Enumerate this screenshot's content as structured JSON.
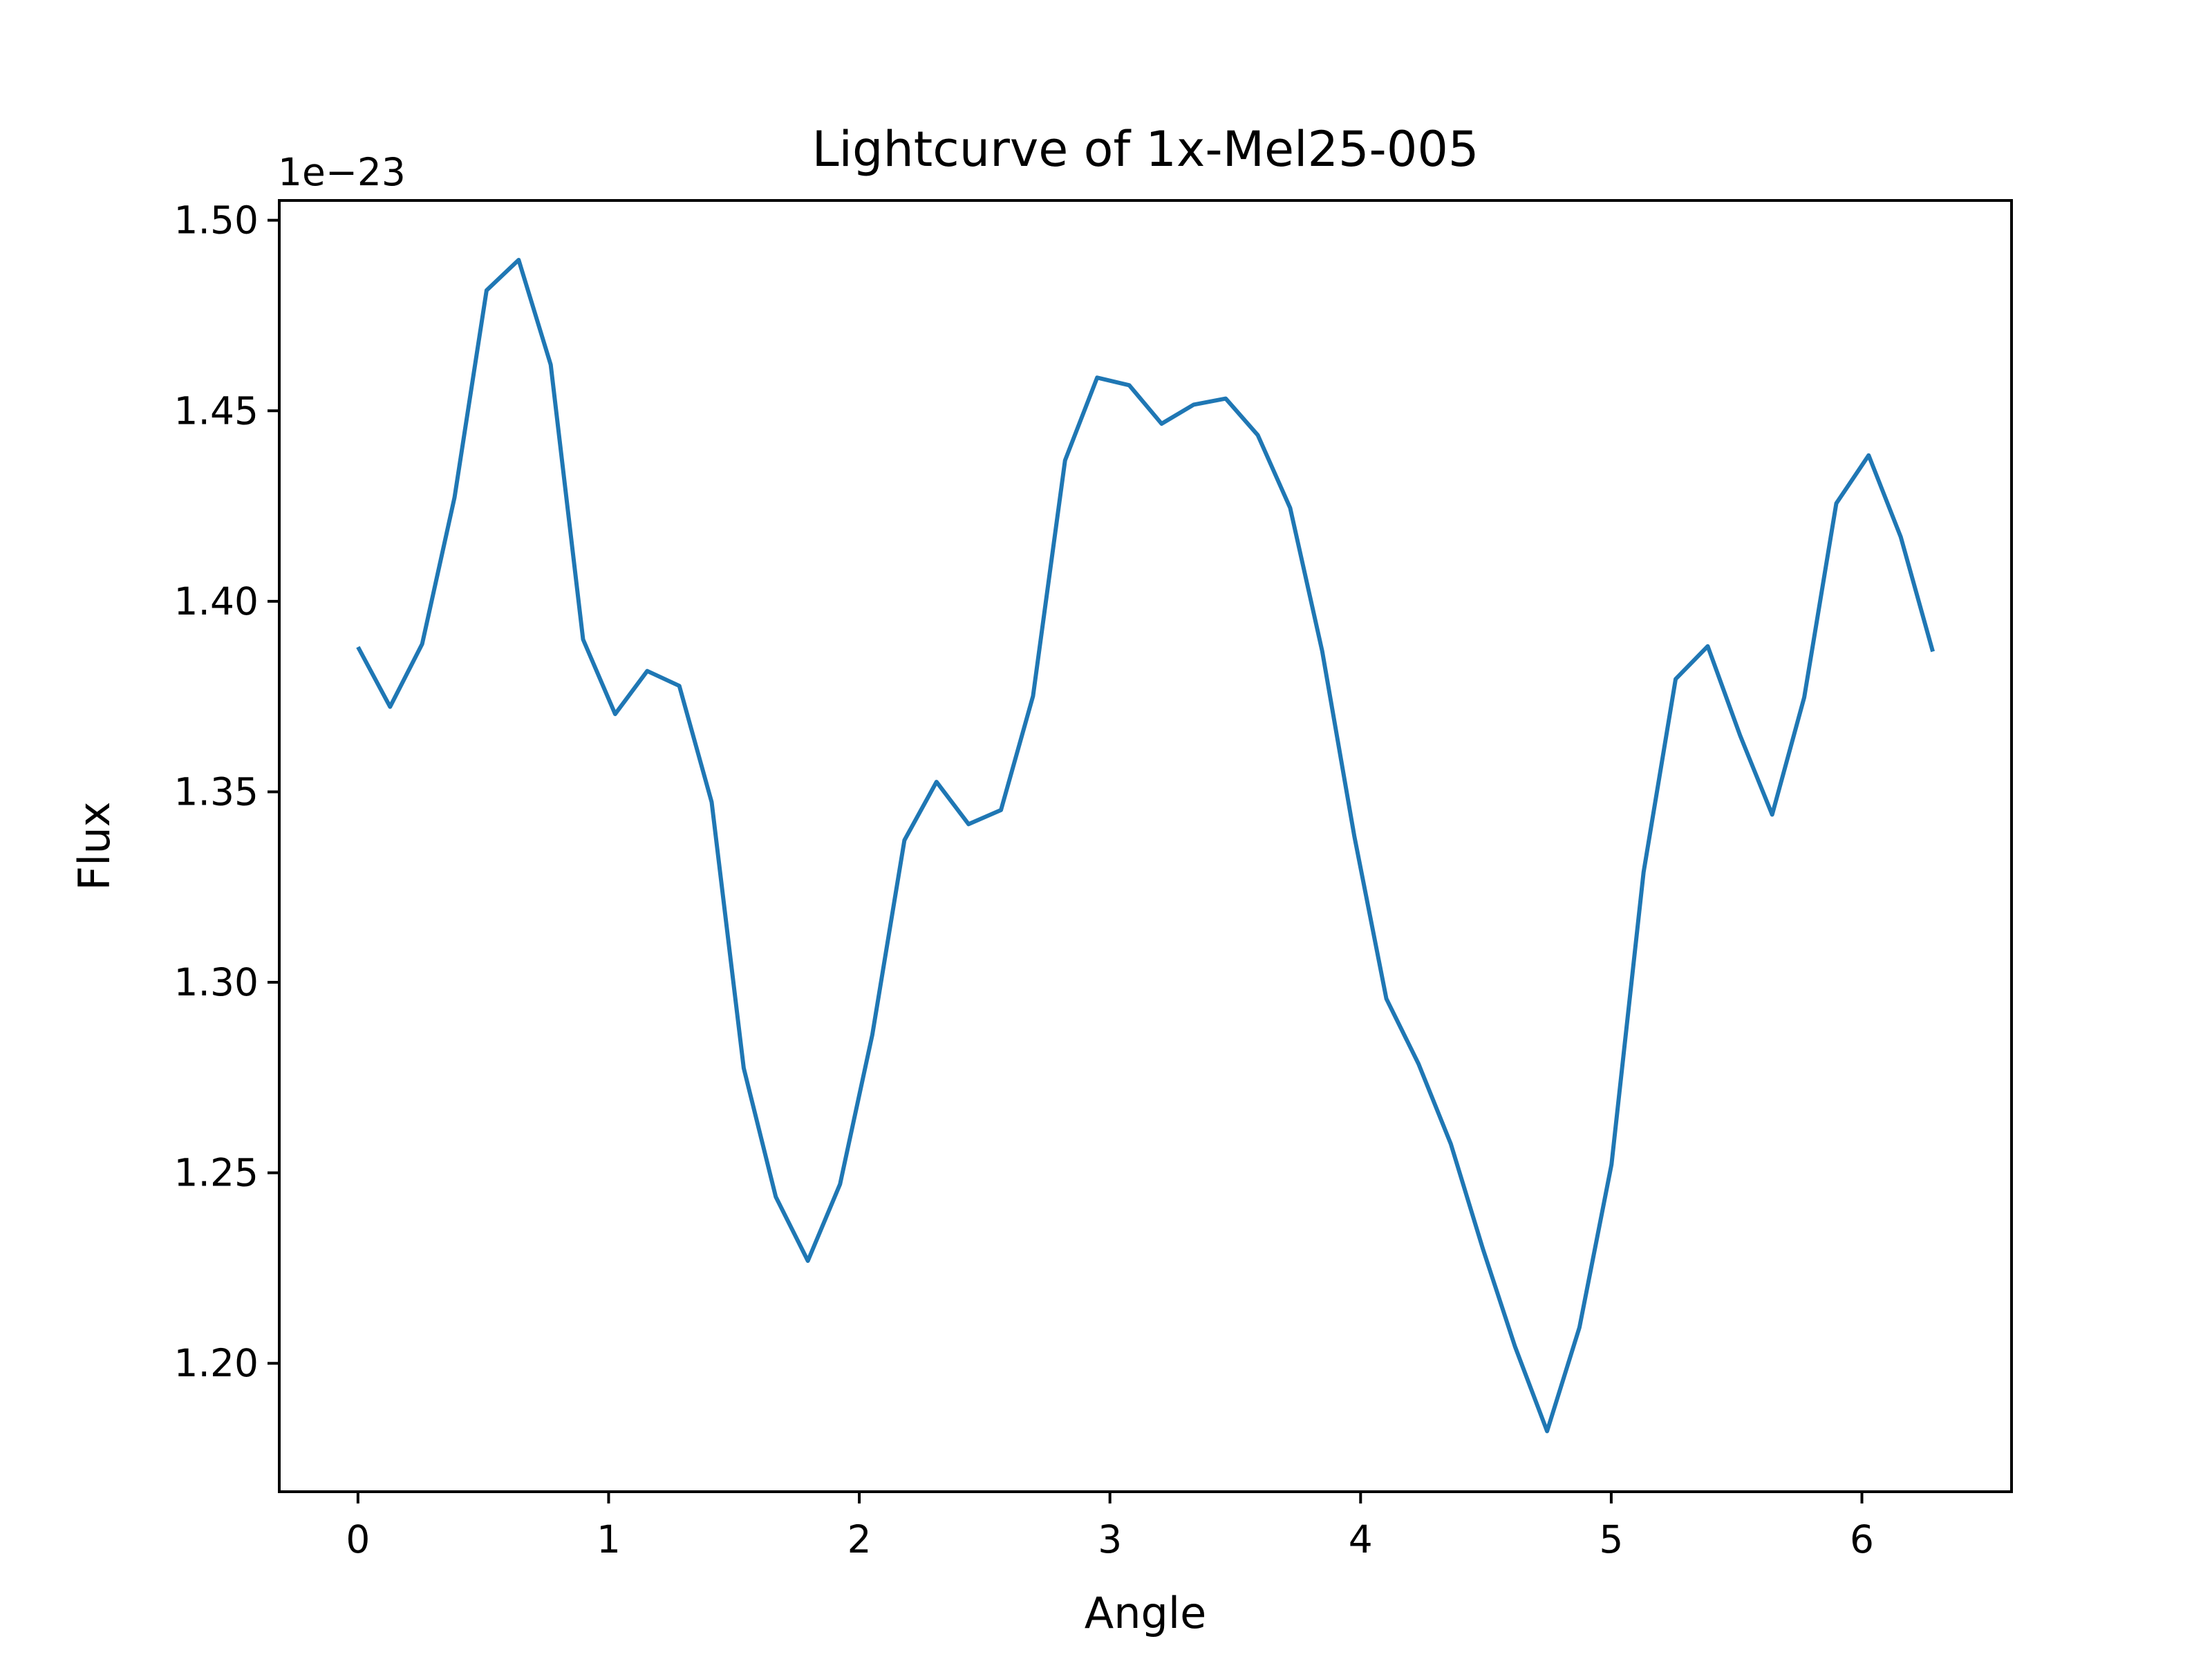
{
  "chart_data": {
    "type": "line",
    "title": "Lightcurve of 1x-Mel25-005",
    "xlabel": "Angle",
    "ylabel": "Flux",
    "offset_label": "1e−23",
    "xlim": [
      -0.314,
      6.597
    ],
    "ylim": [
      1.1663,
      1.5052
    ],
    "xticks": [
      0,
      1,
      2,
      3,
      4,
      5,
      6
    ],
    "xtick_labels": [
      "0",
      "1",
      "2",
      "3",
      "4",
      "5",
      "6"
    ],
    "yticks": [
      1.2,
      1.25,
      1.3,
      1.35,
      1.4,
      1.45,
      1.5
    ],
    "ytick_labels": [
      "1.20",
      "1.25",
      "1.30",
      "1.35",
      "1.40",
      "1.45",
      "1.50"
    ],
    "grid": false,
    "line_color": "#1f77b4",
    "series": [
      {
        "x": [
          0.0,
          0.128,
          0.256,
          0.385,
          0.513,
          0.641,
          0.769,
          0.898,
          1.026,
          1.154,
          1.282,
          1.411,
          1.539,
          1.667,
          1.795,
          1.923,
          2.052,
          2.18,
          2.308,
          2.436,
          2.565,
          2.693,
          2.821,
          2.949,
          3.077,
          3.206,
          3.334,
          3.462,
          3.59,
          3.719,
          3.847,
          3.975,
          4.103,
          4.231,
          4.36,
          4.488,
          4.616,
          4.744,
          4.873,
          5.001,
          5.129,
          5.257,
          5.385,
          5.514,
          5.642,
          5.77,
          5.898,
          6.027,
          6.155,
          6.283
        ],
        "y": [
          1.388,
          1.3723,
          1.3888,
          1.4272,
          1.4816,
          1.4896,
          1.4621,
          1.39,
          1.3704,
          1.3817,
          1.3778,
          1.3473,
          1.2775,
          1.2437,
          1.2269,
          1.247,
          1.2862,
          1.3373,
          1.3526,
          1.3415,
          1.3452,
          1.3751,
          1.437,
          1.4587,
          1.4567,
          1.4466,
          1.4516,
          1.4532,
          1.4436,
          1.4245,
          1.3869,
          1.3384,
          1.2957,
          1.2786,
          1.2576,
          1.23,
          1.2044,
          1.1822,
          1.2094,
          1.2522,
          1.3289,
          1.3796,
          1.3882,
          1.3648,
          1.344,
          1.3748,
          1.4257,
          1.4383,
          1.4169,
          1.3868
        ]
      }
    ]
  }
}
